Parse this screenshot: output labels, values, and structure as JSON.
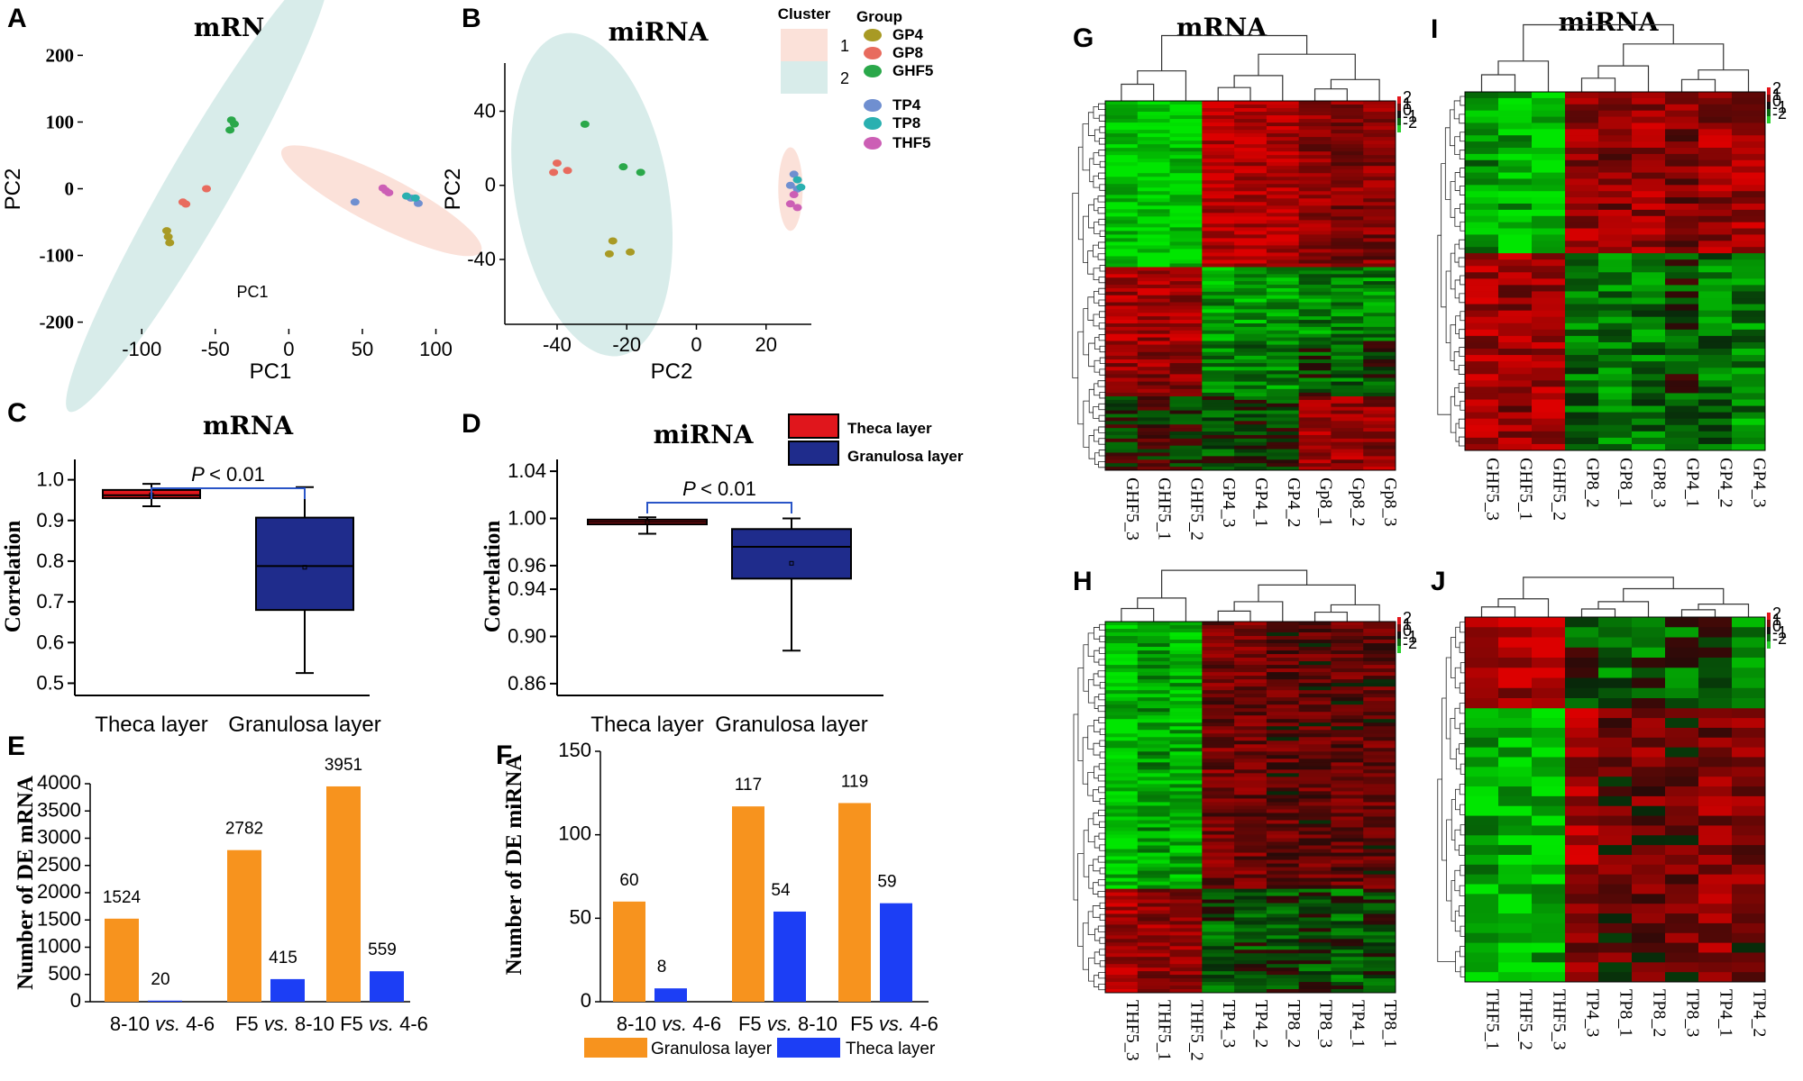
{
  "figure": {
    "panel_letters": [
      "A",
      "B",
      "C",
      "D",
      "E",
      "F",
      "G",
      "H",
      "I",
      "J"
    ]
  },
  "chart_data": [
    {
      "panel": "A",
      "type": "scatter",
      "title": "mRNA",
      "xlabel": "PC1",
      "ylabel": "PC2",
      "inner_label": "PC1",
      "xticks": [
        "-100",
        "-50",
        "0",
        "50",
        "100"
      ],
      "yticks": [
        "200",
        "100",
        "0",
        "-100",
        "-200"
      ],
      "xlim": [
        -140,
        115
      ],
      "ylim": [
        -210,
        210
      ],
      "clusters": [
        {
          "name": "2",
          "color": "#d8ecea",
          "center": [
            -62,
            0
          ],
          "rx": 175,
          "ry": 22,
          "angle": -60
        },
        {
          "name": "1",
          "color": "#fbe1d9",
          "center": [
            63,
            -18
          ],
          "rx": 76,
          "ry": 17,
          "angle": 27
        }
      ],
      "series": [
        {
          "name": "GP4",
          "color": "#a89a24",
          "points": [
            [
              -83,
              -63
            ],
            [
              -82,
              -72
            ],
            [
              -81,
              -81
            ]
          ]
        },
        {
          "name": "GP8",
          "color": "#e86b5e",
          "points": [
            [
              -72,
              -20
            ],
            [
              -70,
              -23
            ],
            [
              -56,
              0
            ]
          ]
        },
        {
          "name": "GHF5",
          "color": "#2aa84a",
          "points": [
            [
              -39,
              103
            ],
            [
              -37,
              97
            ],
            [
              -40,
              88
            ]
          ]
        },
        {
          "name": "TP4",
          "color": "#6f8fd0",
          "points": [
            [
              45,
              -20
            ],
            [
              83,
              -14
            ],
            [
              88,
              -22
            ]
          ]
        },
        {
          "name": "TP8",
          "color": "#2ab0b0",
          "points": [
            [
              80,
              -11
            ],
            [
              86,
              -14
            ]
          ]
        },
        {
          "name": "THF5",
          "color": "#cc5fb5",
          "points": [
            [
              64,
              1
            ],
            [
              66,
              -3
            ],
            [
              68,
              -6
            ]
          ]
        }
      ]
    },
    {
      "panel": "B",
      "type": "scatter",
      "title": "miRNA",
      "xlabel": "PC2",
      "ylabel": "PC2",
      "xticks": [
        "-40",
        "-20",
        "0",
        "20"
      ],
      "yticks": [
        "40",
        "0",
        "-40"
      ],
      "xlim": [
        -55,
        33
      ],
      "ylim": [
        -75,
        66
      ],
      "legend_cluster_title": "Cluster",
      "legend_group_title": "Group",
      "clusters": [
        {
          "name": "1",
          "color": "#fbe1d9",
          "center": [
            27,
            -2
          ],
          "rx": 3.5,
          "ry": 12,
          "angle": 0
        },
        {
          "name": "2",
          "color": "#d8ecea",
          "center": [
            -30,
            -5
          ],
          "rx": 22,
          "ry": 47,
          "angle": -10
        }
      ],
      "series": [
        {
          "name": "GP4",
          "color": "#a89a24",
          "points": [
            [
              -24,
              -30
            ],
            [
              -25,
              -37
            ],
            [
              -19,
              -36
            ]
          ]
        },
        {
          "name": "GP8",
          "color": "#e86b5e",
          "points": [
            [
              -40,
              12
            ],
            [
              -41,
              7
            ],
            [
              -37,
              8
            ]
          ]
        },
        {
          "name": "GHF5",
          "color": "#2aa84a",
          "points": [
            [
              -32,
              33
            ],
            [
              -21,
              10
            ],
            [
              -16,
              7
            ]
          ]
        },
        {
          "name": "TP4",
          "color": "#6f8fd0",
          "points": [
            [
              28,
              6
            ],
            [
              27,
              0
            ],
            [
              29,
              -2
            ]
          ]
        },
        {
          "name": "TP8",
          "color": "#2ab0b0",
          "points": [
            [
              29,
              3
            ],
            [
              30,
              -1
            ]
          ]
        },
        {
          "name": "THF5",
          "color": "#cc5fb5",
          "points": [
            [
              28,
              -5
            ],
            [
              27,
              -10
            ],
            [
              29,
              -12
            ]
          ]
        }
      ]
    },
    {
      "panel": "C",
      "type": "box",
      "title": "mRNA",
      "ylabel": "Correlation",
      "categories": [
        "Theca layer",
        "Granulosa layer"
      ],
      "yticks": [
        "1.0",
        "0.9",
        "0.8",
        "0.7",
        "0.6",
        "0.5"
      ],
      "ylim": [
        0.47,
        1.05
      ],
      "significance": "P < 0.01",
      "boxes": [
        {
          "name": "Theca layer",
          "color": "#e0161c",
          "min": 0.935,
          "q1": 0.955,
          "median": 0.962,
          "q3": 0.975,
          "max": 0.99,
          "mean": 0.963
        },
        {
          "name": "Granulosa layer",
          "color": "#1f2c8c",
          "min": 0.525,
          "q1": 0.68,
          "median": 0.788,
          "q3": 0.907,
          "max": 0.982,
          "mean": 0.785
        }
      ]
    },
    {
      "panel": "D",
      "type": "box",
      "title": "miRNA",
      "ylabel": "Correlation",
      "categories": [
        "Theca layer",
        "Granulosa layer"
      ],
      "yticks": [
        "1.04",
        "1.00",
        "0.96",
        "0.94",
        "0.90",
        "0.86"
      ],
      "ylim": [
        0.85,
        1.05
      ],
      "significance": "P < 0.01",
      "legend": [
        "Theca layer",
        "Granulosa layer"
      ],
      "boxes": [
        {
          "name": "Theca layer",
          "color": "#e0161c",
          "min": 0.987,
          "q1": 0.995,
          "median": 0.997,
          "q3": 0.999,
          "max": 1.001,
          "mean": 0.997
        },
        {
          "name": "Granulosa layer",
          "color": "#1f2c8c",
          "min": 0.888,
          "q1": 0.949,
          "median": 0.976,
          "q3": 0.991,
          "max": 1.0,
          "mean": 0.962
        }
      ]
    },
    {
      "panel": "E",
      "type": "bar",
      "ylabel": "Number of DE mRNA",
      "categories": [
        "8-10 vs. 4-6",
        "F5 vs. 8-10",
        "F5 vs. 4-6"
      ],
      "yticks": [
        "4000",
        "3500",
        "3000",
        "2500",
        "2000",
        "1500",
        "1000",
        "500",
        "0"
      ],
      "ylim": [
        0,
        4000
      ],
      "series": [
        {
          "name": "Granulosa layer",
          "color": "#f7931e",
          "values": [
            1524,
            2782,
            3951
          ]
        },
        {
          "name": "Theca layer",
          "color": "#1c3ef5",
          "values": [
            20,
            415,
            559
          ]
        }
      ]
    },
    {
      "panel": "F",
      "type": "bar",
      "ylabel": "Number of DE miRNA",
      "categories": [
        "8-10 vs. 4-6",
        "F5 vs. 8-10",
        "F5 vs. 4-6"
      ],
      "yticks": [
        "150",
        "100",
        "50",
        "0"
      ],
      "ylim": [
        0,
        150
      ],
      "legend": [
        "Granulosa layer",
        "Theca layer"
      ],
      "series": [
        {
          "name": "Granulosa layer",
          "color": "#f7931e",
          "values": [
            60,
            117,
            119
          ]
        },
        {
          "name": "Theca layer",
          "color": "#1c3ef5",
          "values": [
            8,
            54,
            59
          ]
        }
      ]
    },
    {
      "panel": "G",
      "type": "heatmap",
      "title": "mRNA",
      "columns": [
        "GHF5_3",
        "GHF5_1",
        "GHF5_2",
        "GP4_3",
        "GP4_1",
        "GP4_2",
        "Gp8_1",
        "Gp8_2",
        "Gp8_3"
      ],
      "scale_ticks": [
        "2",
        "1",
        "0",
        "-1",
        "-2"
      ],
      "blocks": [
        {
          "rows": 0.45,
          "values": [
            -0.9,
            -0.9,
            -0.9,
            0.8,
            0.8,
            0.8,
            0.6,
            0.5,
            0.5
          ]
        },
        {
          "rows": 0.2,
          "values": [
            0.7,
            0.7,
            0.7,
            -0.6,
            -0.6,
            -0.6,
            -0.5,
            -0.5,
            -0.5
          ]
        },
        {
          "rows": 0.15,
          "values": [
            0.6,
            0.6,
            0.5,
            -0.5,
            -0.4,
            -0.5,
            -0.2,
            -0.3,
            -0.2
          ]
        },
        {
          "rows": 0.2,
          "values": [
            0.0,
            0.1,
            0.0,
            -0.2,
            -0.1,
            -0.2,
            0.7,
            0.6,
            0.6
          ]
        }
      ]
    },
    {
      "panel": "H",
      "type": "heatmap",
      "columns": [
        "THF5_3",
        "THF5_1",
        "THF5_2",
        "TP4_3",
        "TP4_2",
        "TP8_2",
        "TP8_3",
        "TP4_1",
        "TP8_1"
      ],
      "scale_ticks": [
        "2",
        "1",
        "0",
        "-1",
        "-2"
      ],
      "blocks": [
        {
          "rows": 0.72,
          "values": [
            -0.8,
            -0.6,
            -0.7,
            0.4,
            0.4,
            0.3,
            0.3,
            0.3,
            0.3
          ]
        },
        {
          "rows": 0.28,
          "values": [
            0.7,
            0.6,
            0.6,
            -0.3,
            -0.2,
            -0.2,
            -0.2,
            -0.3,
            -0.2
          ]
        }
      ]
    },
    {
      "panel": "I",
      "type": "heatmap",
      "title": "miRNA",
      "columns": [
        "GHF5_3",
        "GHF5_1",
        "GHF5_2",
        "GP8_2",
        "GP8_1",
        "GP8_3",
        "GP4_1",
        "GP4_2",
        "GP4_3"
      ],
      "scale_ticks": [
        "2",
        "1",
        "0",
        "-1",
        "-2"
      ],
      "blocks": [
        {
          "rows": 0.45,
          "values": [
            -0.6,
            -0.7,
            -0.8,
            0.6,
            0.5,
            0.6,
            0.5,
            0.6,
            0.6
          ]
        },
        {
          "rows": 0.55,
          "values": [
            0.7,
            0.6,
            0.7,
            -0.4,
            -0.5,
            -0.4,
            -0.2,
            -0.4,
            -0.5
          ]
        }
      ]
    },
    {
      "panel": "J",
      "type": "heatmap",
      "columns": [
        "THF5_1",
        "THF5_2",
        "THF5_3",
        "TP4_3",
        "TP8_1",
        "TP8_2",
        "TP8_3",
        "TP4_1",
        "TP4_2"
      ],
      "scale_ticks": [
        "2",
        "1",
        "0",
        "-1",
        "-2"
      ],
      "blocks": [
        {
          "rows": 0.25,
          "values": [
            0.6,
            0.7,
            0.9,
            -0.2,
            -0.4,
            -0.3,
            -0.3,
            -0.2,
            -0.4
          ]
        },
        {
          "rows": 0.75,
          "values": [
            -0.7,
            -0.8,
            -0.7,
            0.6,
            0.3,
            0.4,
            0.3,
            0.5,
            0.4
          ]
        }
      ]
    }
  ]
}
